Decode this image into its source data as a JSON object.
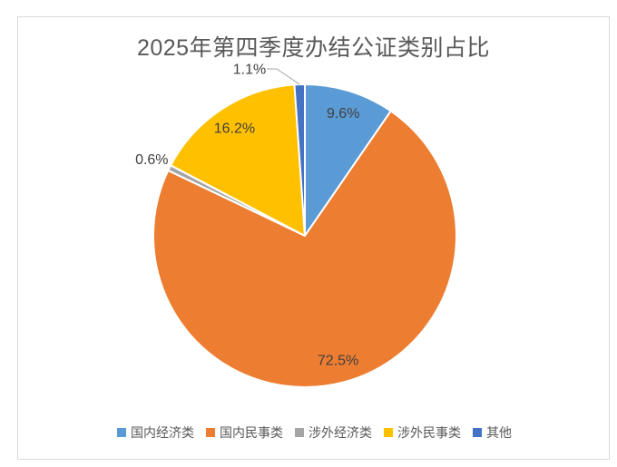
{
  "chart_data": {
    "type": "pie",
    "title": "2025年第四季度办结公证类别占比",
    "legend_position": "bottom",
    "grid": false,
    "slices": [
      {
        "label": "国内经济类",
        "value": 9.6,
        "pct_label": "9.6%",
        "color": "#5B9BD5",
        "label_placement": "inside"
      },
      {
        "label": "国内民事类",
        "value": 72.5,
        "pct_label": "72.5%",
        "color": "#ED7D31",
        "label_placement": "inside"
      },
      {
        "label": "涉外经济类",
        "value": 0.6,
        "pct_label": "0.6%",
        "color": "#A5A5A5",
        "label_placement": "outside"
      },
      {
        "label": "涉外民事类",
        "value": 16.2,
        "pct_label": "16.2%",
        "color": "#FFC000",
        "label_placement": "inside"
      },
      {
        "label": "其他",
        "value": 1.1,
        "pct_label": "1.1%",
        "color": "#4472C4",
        "label_placement": "outside-left-leader"
      }
    ],
    "colors": {
      "title_text": "#595959",
      "data_label_text": "#404040",
      "legend_text": "#595959",
      "frame_border": "#D9D9D9",
      "leader_line": "#A6A6A6",
      "slice_separator": "#FFFFFF"
    }
  }
}
